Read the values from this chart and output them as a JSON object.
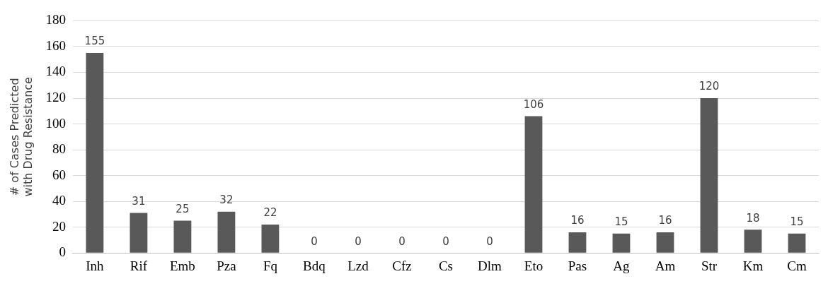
{
  "chart_data": {
    "type": "bar",
    "ylabel": "# of Cases Predicted with Drug Resistance",
    "categories": [
      "Inh",
      "Rif",
      "Emb",
      "Pza",
      "Fq",
      "Bdq",
      "Lzd",
      "Cfz",
      "Cs",
      "Dlm",
      "Eto",
      "Pas",
      "Ag",
      "Am",
      "Str",
      "Km",
      "Cm"
    ],
    "values": [
      155,
      31,
      25,
      32,
      22,
      0,
      0,
      0,
      0,
      0,
      106,
      16,
      15,
      16,
      120,
      18,
      15
    ],
    "color": "#595959",
    "ylim": [
      0,
      180
    ],
    "yticks": [
      0,
      20,
      40,
      60,
      80,
      100,
      120,
      140,
      160,
      180
    ],
    "grid": "y",
    "data_labels": true
  }
}
